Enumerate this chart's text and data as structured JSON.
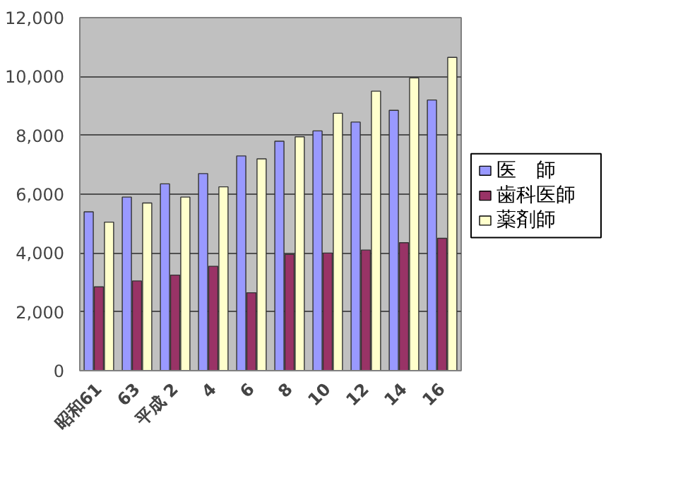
{
  "chart_data": {
    "type": "bar",
    "categories": [
      "昭和61",
      "63",
      "平成 2",
      "4",
      "6",
      "8",
      "10",
      "12",
      "14",
      "16"
    ],
    "series": [
      {
        "name": "医　師",
        "color": "#9999ff",
        "values": [
          5400,
          5900,
          6350,
          6700,
          7300,
          7800,
          8150,
          8450,
          8850,
          9200
        ]
      },
      {
        "name": "歯科医師",
        "color": "#993366",
        "values": [
          2850,
          3050,
          3250,
          3550,
          2650,
          3950,
          4000,
          4100,
          4350,
          4500
        ]
      },
      {
        "name": "薬剤師",
        "color": "#ffffcc",
        "values": [
          5050,
          5700,
          5900,
          6250,
          7200,
          7950,
          8750,
          9500,
          9950,
          10650
        ]
      }
    ],
    "ylim": [
      0,
      12000
    ],
    "yticks": [
      {
        "value": 0,
        "label": "0"
      },
      {
        "value": 2000,
        "label": "2,000"
      },
      {
        "value": 4000,
        "label": "4,000"
      },
      {
        "value": 6000,
        "label": "6,000"
      },
      {
        "value": 8000,
        "label": "8,000"
      },
      {
        "value": 10000,
        "label": "10,000"
      },
      {
        "value": 12000,
        "label": "12,000"
      }
    ],
    "grid": "y",
    "legend": "right"
  }
}
